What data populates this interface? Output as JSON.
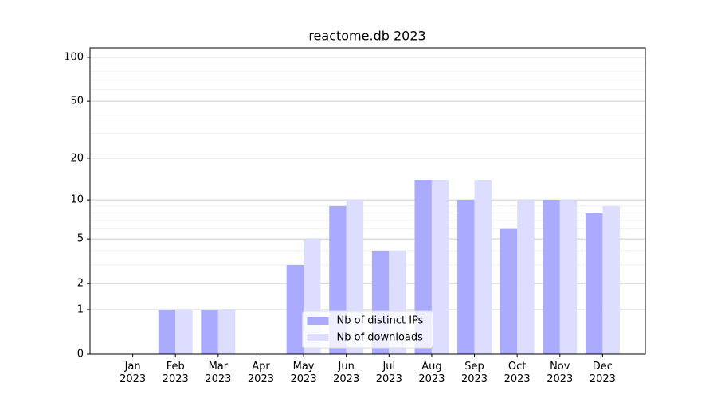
{
  "chart_data": {
    "type": "bar",
    "title": "reactome.db 2023",
    "categories": [
      "Jan\n2023",
      "Feb\n2023",
      "Mar\n2023",
      "Apr\n2023",
      "May\n2023",
      "Jun\n2023",
      "Jul\n2023",
      "Aug\n2023",
      "Sep\n2023",
      "Oct\n2023",
      "Nov\n2023",
      "Dec\n2023"
    ],
    "series": [
      {
        "name": "Nb of distinct IPs",
        "color": "#aaaaff",
        "values": [
          0,
          1,
          1,
          0,
          3,
          9,
          4,
          14,
          10,
          6,
          10,
          8
        ]
      },
      {
        "name": "Nb of downloads",
        "color": "#ddddff",
        "values": [
          0,
          1,
          1,
          0,
          5,
          10,
          4,
          14,
          14,
          10,
          10,
          9
        ]
      }
    ],
    "yscale": "log1p",
    "ylim": [
      0,
      116
    ],
    "yticks": [
      0,
      1,
      2,
      5,
      10,
      20,
      50,
      100
    ],
    "minor_yticks": [
      3,
      4,
      6,
      7,
      8,
      9,
      30,
      40,
      60,
      70,
      80,
      90
    ],
    "grid": true,
    "legend": "lower center"
  }
}
